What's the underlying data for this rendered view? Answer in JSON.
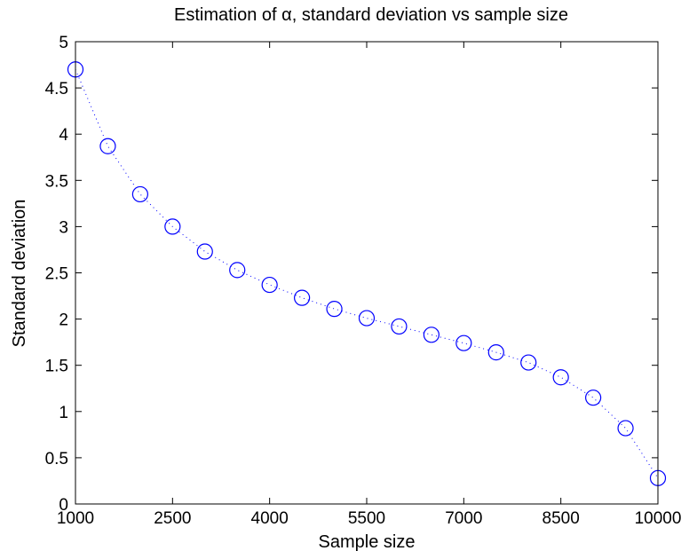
{
  "chart_data": {
    "type": "scatter",
    "title": "Estimation of α, standard deviation vs sample size",
    "xlabel": "Sample size",
    "ylabel": "Standard deviation",
    "xlim": [
      1000,
      10000
    ],
    "ylim": [
      0,
      5
    ],
    "xticks": [
      1000,
      2500,
      4000,
      5500,
      7000,
      8500,
      10000
    ],
    "yticks": [
      0,
      0.5,
      1,
      1.5,
      2,
      2.5,
      3,
      3.5,
      4,
      4.5,
      5
    ],
    "grid": false,
    "marker": "circle",
    "line_style": "dotted",
    "colors": {
      "marker": "#0000ff",
      "line": "#0000ff",
      "axes": "#000000"
    },
    "series": [
      {
        "x": [
          1000,
          1500,
          2000,
          2500,
          3000,
          3500,
          4000,
          4500,
          5000,
          5500,
          6000,
          6500,
          7000,
          7500,
          8000,
          8500,
          9000,
          9500,
          10000
        ],
        "y": [
          4.7,
          3.87,
          3.35,
          3.0,
          2.73,
          2.53,
          2.37,
          2.23,
          2.11,
          2.01,
          1.92,
          1.83,
          1.74,
          1.64,
          1.53,
          1.37,
          1.15,
          0.82,
          0.28
        ]
      }
    ]
  }
}
